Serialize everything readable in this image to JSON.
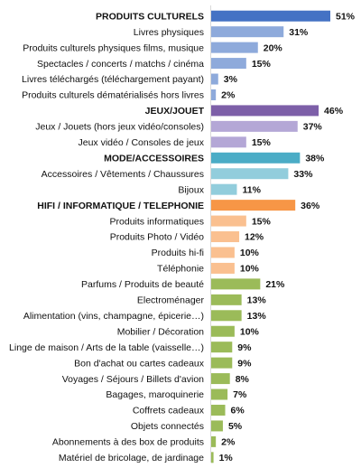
{
  "chart_data": {
    "type": "bar",
    "orientation": "horizontal",
    "value_suffix": "%",
    "xlim": [
      0,
      51
    ],
    "grid": false,
    "categories": [
      "PRODUITS CULTURELS",
      "Livres physiques",
      "Produits culturels physiques films, musique",
      "Spectacles / concerts / matchs / cinéma",
      "Livres téléchargés (téléchargement payant)",
      "Produits culturels dématérialisés hors livres",
      "JEUX/JOUET",
      "Jeux / Jouets (hors jeux vidéo/consoles)",
      "Jeux vidéo / Consoles de jeux",
      "MODE/ACCESSOIRES",
      "Accessoires / Vêtements / Chaussures",
      "Bijoux",
      "HIFI / INFORMATIQUE / TELEPHONIE",
      "Produits informatiques",
      "Produits Photo / Vidéo",
      "Produits hi-fi",
      "Téléphonie",
      "Parfums / Produits de beauté",
      "Electroménager",
      "Alimentation (vins, champagne, épicerie…)",
      "Mobilier / Décoration",
      "Linge de maison / Arts de la table (vaisselle…)",
      "Bon d'achat ou cartes cadeaux",
      "Voyages / Séjours / Billets d'avion",
      "Bagages, maroquinerie",
      "Coffrets cadeaux",
      "Objets connectés",
      "Abonnements à des box de produits",
      "Matériel de bricolage, de jardinage"
    ],
    "values": [
      51,
      31,
      20,
      15,
      3,
      2,
      46,
      37,
      15,
      38,
      33,
      11,
      36,
      15,
      12,
      10,
      10,
      21,
      13,
      13,
      10,
      9,
      9,
      8,
      7,
      6,
      5,
      2,
      1
    ],
    "value_labels": [
      "51%",
      "31%",
      "20%",
      "15%",
      "3%",
      "2%",
      "46%",
      "37%",
      "15%",
      "38%",
      "33%",
      "11%",
      "36%",
      "15%",
      "12%",
      "10%",
      "10%",
      "21%",
      "13%",
      "13%",
      "10%",
      "9%",
      "9%",
      "8%",
      "7%",
      "6%",
      "5%",
      "2%",
      "1%"
    ],
    "bold_categories": [
      0,
      6,
      9,
      12
    ],
    "colors": [
      "#4472c4",
      "#8eaadb",
      "#8eaadb",
      "#8eaadb",
      "#8eaadb",
      "#8eaadb",
      "#7d5fa8",
      "#b4a7d6",
      "#b4a7d6",
      "#4bacc6",
      "#92cddc",
      "#92cddc",
      "#f79646",
      "#fac090",
      "#fac090",
      "#fac090",
      "#fac090",
      "#9bbb59",
      "#9bbb59",
      "#9bbb59",
      "#9bbb59",
      "#9bbb59",
      "#9bbb59",
      "#9bbb59",
      "#9bbb59",
      "#9bbb59",
      "#9bbb59",
      "#9bbb59",
      "#9bbb59"
    ]
  }
}
